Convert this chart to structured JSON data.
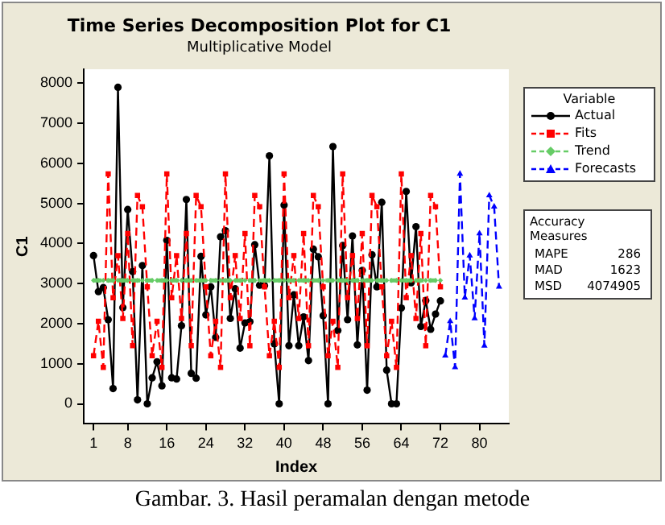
{
  "chart_data": {
    "type": "line",
    "title": "Time Series Decomposition Plot for C1",
    "subtitle": "Multiplicative Model",
    "xlabel": "Index",
    "ylabel": "C1",
    "legend_title": "Variable",
    "legend": "right",
    "grid": false,
    "x": [
      1,
      2,
      3,
      4,
      5,
      6,
      7,
      8,
      9,
      10,
      11,
      12,
      13,
      14,
      15,
      16,
      17,
      18,
      19,
      20,
      21,
      22,
      23,
      24,
      25,
      26,
      27,
      28,
      29,
      30,
      31,
      32,
      33,
      34,
      35,
      36,
      37,
      38,
      39,
      40,
      41,
      42,
      43,
      44,
      45,
      46,
      47,
      48,
      49,
      50,
      51,
      52,
      53,
      54,
      55,
      56,
      57,
      58,
      59,
      60,
      61,
      62,
      63,
      64,
      65,
      66,
      67,
      68,
      69,
      70,
      71,
      72
    ],
    "xlim": [
      -1,
      86
    ],
    "xticks": [
      1,
      8,
      16,
      24,
      32,
      40,
      48,
      56,
      64,
      72,
      80
    ],
    "ylim": [
      -500,
      8350
    ],
    "yticks": [
      0,
      1000,
      2000,
      3000,
      4000,
      5000,
      6000,
      7000,
      8000
    ],
    "series": [
      {
        "name": "Actual",
        "color": "#000000",
        "marker": "circle",
        "line_style": "solid",
        "values": [
          3700,
          2800,
          2900,
          2100,
          380,
          7900,
          2400,
          4850,
          3300,
          100,
          3450,
          0,
          650,
          1050,
          450,
          4080,
          650,
          620,
          1950,
          5100,
          760,
          640,
          3680,
          2220,
          2920,
          1660,
          4170,
          4320,
          2130,
          2870,
          1390,
          2020,
          2050,
          3970,
          2960,
          2950,
          6190,
          1500,
          0,
          4960,
          1450,
          2720,
          1450,
          2170,
          1080,
          3860,
          3670,
          2200,
          0,
          6420,
          1830,
          3950,
          2100,
          4190,
          1470,
          3330,
          340,
          3720,
          2920,
          5030,
          840,
          0,
          0,
          2390,
          5300,
          3020,
          4420,
          1930,
          2580,
          1860,
          2240,
          2570
        ]
      },
      {
        "name": "Fits",
        "color": "#ff0000",
        "marker": "square",
        "line_style": "dashed",
        "values": [
          1200,
          2060,
          910,
          5740,
          2650,
          3700,
          2130,
          4250,
          1450,
          5200,
          4920,
          2920,
          1200,
          2060,
          910,
          5740,
          2650,
          3700,
          2130,
          4250,
          1450,
          5200,
          4920,
          2920,
          1200,
          2060,
          910,
          5740,
          2650,
          3700,
          2130,
          4250,
          1450,
          5200,
          4920,
          2920,
          1200,
          2060,
          910,
          5740,
          2650,
          3700,
          2130,
          4250,
          1450,
          5200,
          4920,
          2920,
          1200,
          2060,
          910,
          5740,
          2650,
          3700,
          2130,
          4250,
          1450,
          5200,
          4920,
          2920,
          1200,
          2060,
          910,
          5740,
          2650,
          3700,
          2130,
          4250,
          1450,
          5200,
          4920,
          2920
        ]
      },
      {
        "name": "Trend",
        "color": "#66cc66",
        "marker": "diamond",
        "line_style": "dashed",
        "values": [
          3080,
          3080,
          3080,
          3080,
          3080,
          3080,
          3080,
          3080,
          3080,
          3080,
          3080,
          3080,
          3080,
          3080,
          3080,
          3080,
          3080,
          3080,
          3080,
          3080,
          3080,
          3080,
          3080,
          3080,
          3080,
          3080,
          3080,
          3080,
          3080,
          3080,
          3080,
          3080,
          3080,
          3080,
          3080,
          3080,
          3080,
          3080,
          3080,
          3080,
          3080,
          3080,
          3080,
          3080,
          3080,
          3080,
          3080,
          3080,
          3080,
          3080,
          3080,
          3080,
          3080,
          3080,
          3080,
          3080,
          3080,
          3080,
          3080,
          3080,
          3080,
          3080,
          3080,
          3080,
          3080,
          3080,
          3080,
          3080,
          3080,
          3080,
          3080,
          3080
        ]
      },
      {
        "name": "Forecasts",
        "color": "#0000ff",
        "marker": "triangle",
        "line_style": "dashed",
        "x": [
          73,
          74,
          75,
          76,
          77,
          78,
          79,
          80,
          81,
          82,
          83,
          84
        ],
        "values": [
          1200,
          2060,
          910,
          5740,
          2650,
          3700,
          2130,
          4250,
          1450,
          5200,
          4920,
          2920
        ]
      }
    ],
    "annotations": [
      "Accuracy Measures",
      "MAPE 286",
      "MAD 1623",
      "MSD 4074905",
      "Gambar. 3. Hasil peramalan dengan metode"
    ]
  }
}
